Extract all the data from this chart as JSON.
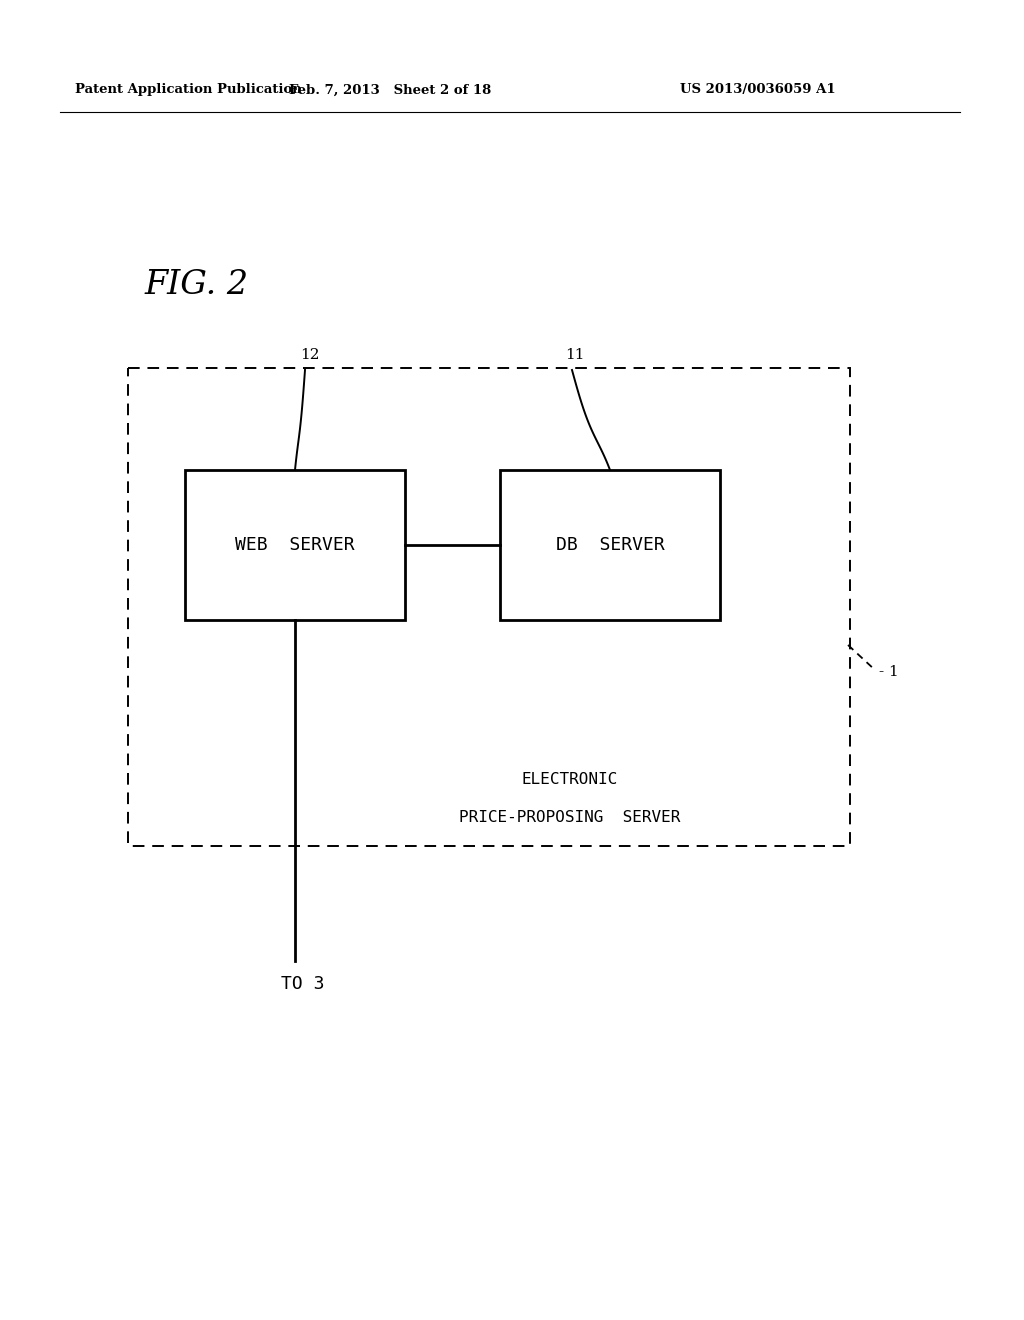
{
  "bg_color": "#ffffff",
  "header_left": "Patent Application Publication",
  "header_mid": "Feb. 7, 2013   Sheet 2 of 18",
  "header_right": "US 2013/0036059 A1",
  "fig_label": "FIG. 2",
  "web_server_label": "WEB  SERVER",
  "db_server_label": "DB  SERVER",
  "server_box_label_line1": "ELECTRONIC",
  "server_box_label_line2": "PRICE-PROPOSING  SERVER",
  "label_1": "1",
  "label_11": "11",
  "label_12": "12",
  "label_to3": "TO 3",
  "box_color": "#000000",
  "text_color": "#000000",
  "dashed_box_color": "#000000",
  "header_line_color": "#000000"
}
